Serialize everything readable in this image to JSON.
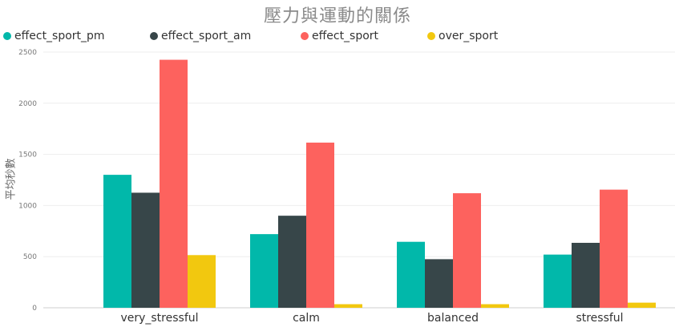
{
  "chart_data": {
    "type": "bar",
    "title": "壓力與運動的關係",
    "ylabel": "平均秒數",
    "xlabel": "",
    "categories": [
      "very_stressful",
      "calm",
      "balanced",
      "stressful"
    ],
    "series": [
      {
        "name": "effect_sport_pm",
        "color": "#01b8aa",
        "values": [
          1300,
          720,
          645,
          520
        ]
      },
      {
        "name": "effect_sport_am",
        "color": "#374649",
        "values": [
          1125,
          900,
          475,
          635
        ]
      },
      {
        "name": "effect_sport",
        "color": "#fd625e",
        "values": [
          2425,
          1615,
          1120,
          1155
        ]
      },
      {
        "name": "over_sport",
        "color": "#f2c80f",
        "values": [
          515,
          35,
          35,
          50
        ]
      }
    ],
    "ylim": [
      0,
      2500
    ],
    "yticks": [
      "0",
      "500",
      "1000",
      "1500",
      "2000",
      "2500"
    ],
    "grid": true,
    "legend": "top"
  }
}
